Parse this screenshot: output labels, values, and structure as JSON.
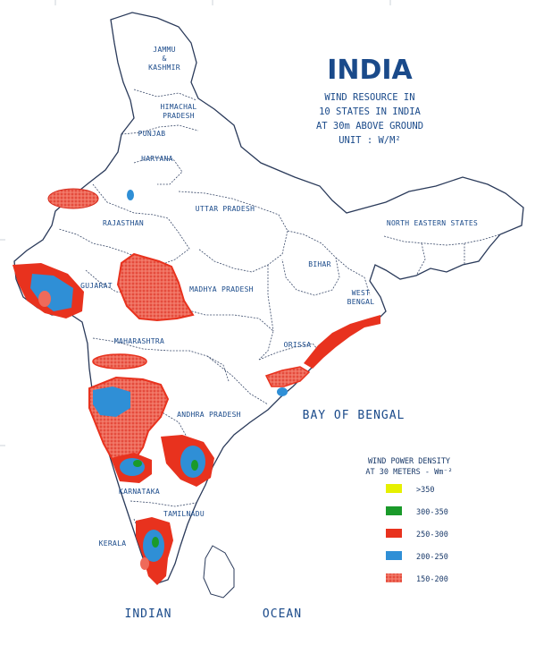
{
  "title": "INDIA",
  "subtitle": [
    "WIND RESOURCE IN",
    "10 STATES IN INDIA",
    "AT 30m ABOVE GROUND",
    "UNIT : W/M²"
  ],
  "states": [
    {
      "id": "jammu-kashmir",
      "lines": [
        "JAMMU",
        "&",
        "KASHMIR"
      ]
    },
    {
      "id": "himachal-pradesh",
      "lines": [
        "HIMACHAL",
        "PRADESH"
      ]
    },
    {
      "id": "punjab",
      "lines": [
        "PUNJAB"
      ]
    },
    {
      "id": "haryana",
      "lines": [
        "HARYANA"
      ]
    },
    {
      "id": "rajasthan",
      "lines": [
        "RAJASTHAN"
      ]
    },
    {
      "id": "uttar-pradesh",
      "lines": [
        "UTTAR PRADESH"
      ]
    },
    {
      "id": "north-eastern-states",
      "lines": [
        "NORTH EASTERN STATES"
      ]
    },
    {
      "id": "bihar",
      "lines": [
        "BIHAR"
      ]
    },
    {
      "id": "west-bengal",
      "lines": [
        "WEST",
        "BENGAL"
      ]
    },
    {
      "id": "gujarat",
      "lines": [
        "GUJARAT"
      ]
    },
    {
      "id": "madhya-pradesh",
      "lines": [
        "MADHYA PRADESH"
      ]
    },
    {
      "id": "maharashtra",
      "lines": [
        "MAHARASHTRA"
      ]
    },
    {
      "id": "orissa",
      "lines": [
        "ORISSA"
      ]
    },
    {
      "id": "andhra-pradesh",
      "lines": [
        "ANDHRA PRADESH"
      ]
    },
    {
      "id": "karnataka",
      "lines": [
        "KARNATAKA"
      ]
    },
    {
      "id": "tamilnadu",
      "lines": [
        "TAMILNADU"
      ]
    },
    {
      "id": "kerala",
      "lines": [
        "KERALA"
      ]
    }
  ],
  "water": {
    "bay": "BAY OF BENGAL",
    "ocean_left": "INDIAN",
    "ocean_right": "OCEAN"
  },
  "legend": {
    "title_line1": "WIND POWER DENSITY",
    "title_line2": "AT 30 METERS - Wm⁻²",
    "items": [
      {
        "label": ">350",
        "color": "#e6f000"
      },
      {
        "label": "300-350",
        "color": "#1a9a2a"
      },
      {
        "label": "250-300",
        "color": "#e8321e"
      },
      {
        "label": "200-250",
        "color": "#2f8fd6"
      },
      {
        "label": "150-200",
        "color": "#ef6a5a"
      }
    ]
  },
  "colors": {
    "boundary": "#2a3a5a",
    "text": "#1a4a8a",
    "red": "#e8321e",
    "blue": "#2f8fd6",
    "green": "#1a9a2a",
    "speckle": "#f07a6a"
  }
}
